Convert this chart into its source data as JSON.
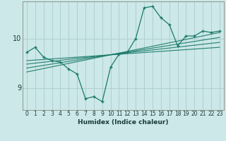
{
  "xlabel": "Humidex (Indice chaleur)",
  "ylabel": "",
  "bg_color": "#cce8e8",
  "line_color": "#1a7a6a",
  "grid_color": "#b0d0d0",
  "xlim": [
    -0.5,
    23.5
  ],
  "ylim": [
    8.55,
    10.75
  ],
  "yticks": [
    9,
    10
  ],
  "xticks": [
    0,
    1,
    2,
    3,
    4,
    5,
    6,
    7,
    8,
    9,
    10,
    11,
    12,
    13,
    14,
    15,
    16,
    17,
    18,
    19,
    20,
    21,
    22,
    23
  ],
  "main_x": [
    0,
    1,
    2,
    3,
    4,
    5,
    6,
    7,
    8,
    9,
    10,
    11,
    12,
    13,
    14,
    15,
    16,
    17,
    18,
    19,
    20,
    21,
    22,
    23
  ],
  "main_y": [
    9.72,
    9.82,
    9.62,
    9.55,
    9.52,
    9.38,
    9.28,
    8.78,
    8.82,
    8.72,
    9.42,
    9.68,
    9.72,
    10.0,
    10.62,
    10.65,
    10.42,
    10.28,
    9.85,
    10.05,
    10.05,
    10.15,
    10.12,
    10.15
  ],
  "reg_lines": [
    {
      "x": [
        0,
        23
      ],
      "y": [
        9.55,
        9.82
      ]
    },
    {
      "x": [
        0,
        23
      ],
      "y": [
        9.48,
        9.92
      ]
    },
    {
      "x": [
        0,
        23
      ],
      "y": [
        9.4,
        10.02
      ]
    },
    {
      "x": [
        0,
        23
      ],
      "y": [
        9.32,
        10.12
      ]
    }
  ],
  "xlabel_fontsize": 6.5,
  "xtick_fontsize": 5.5,
  "ytick_fontsize": 7
}
